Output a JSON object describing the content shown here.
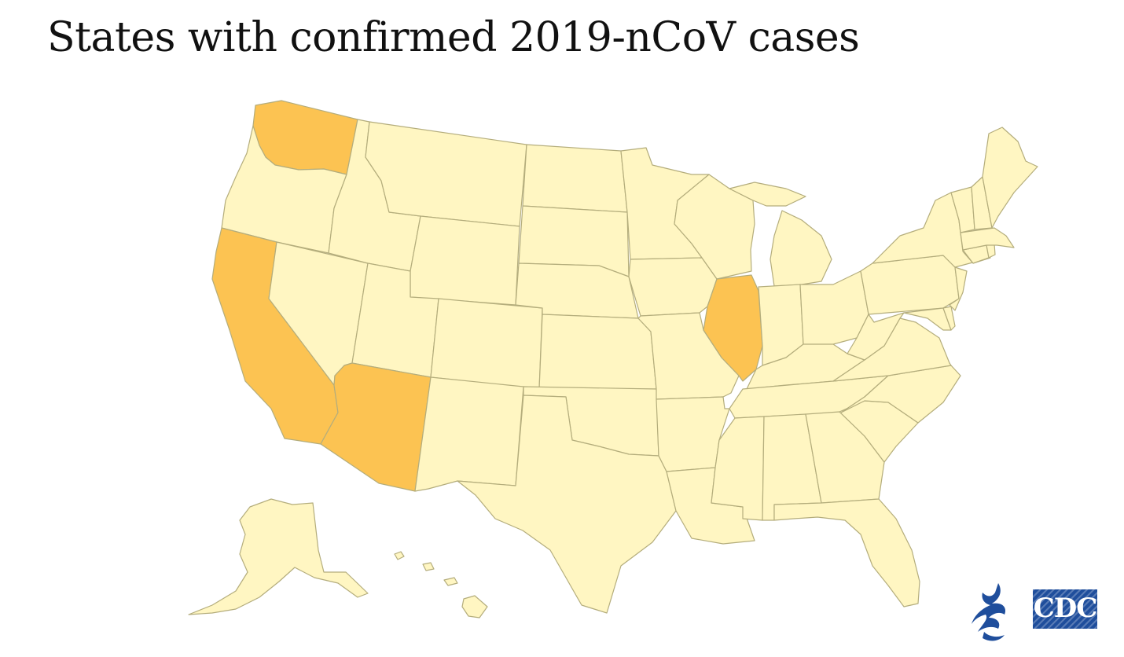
{
  "title": "States with confirmed 2019-nCoV cases",
  "colors": {
    "confirmed": "#fcc352",
    "not_confirmed": "#fff6c2",
    "border": "#b4ad7c",
    "background": "#ffffff",
    "logo_blue": "#1f4e9c"
  },
  "map": {
    "states_with_cases": [
      "Washington",
      "California",
      "Arizona",
      "Illinois"
    ]
  },
  "logo": {
    "icon": "hhs-eagle-icon",
    "text": "CDC"
  }
}
